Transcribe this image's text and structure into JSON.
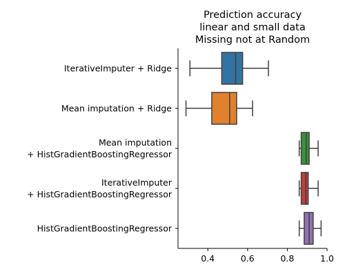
{
  "chart_data": {
    "type": "box",
    "orientation": "horizontal",
    "title": [
      "Prediction accuracy",
      "linear and small data",
      "Missing not at Random"
    ],
    "xlabel": "",
    "ylabel": "",
    "xlim": [
      0.25,
      1.0
    ],
    "xticks": [
      "0.4",
      "0.6",
      "0.8",
      "1.0"
    ],
    "xtick_values": [
      0.4,
      0.6,
      0.8,
      1.0
    ],
    "grid": false,
    "categories": [
      [
        "IterativeImputer + Ridge"
      ],
      [
        "Mean imputation + Ridge"
      ],
      [
        "Mean imputation",
        "+ HistGradientBoostingRegressor"
      ],
      [
        "IterativeImputer",
        "+ HistGradientBoostingRegressor"
      ],
      [
        "HistGradientBoostingRegressor"
      ]
    ],
    "boxes": [
      {
        "color": "#3274a1",
        "whislo": 0.31,
        "q1": 0.47,
        "med": 0.54,
        "q3": 0.575,
        "whishi": 0.705
      },
      {
        "color": "#e1812c",
        "whislo": 0.29,
        "q1": 0.42,
        "med": 0.51,
        "q3": 0.545,
        "whishi": 0.625
      },
      {
        "color": "#3a923a",
        "whislo": 0.86,
        "q1": 0.87,
        "med": 0.895,
        "q3": 0.91,
        "whishi": 0.955
      },
      {
        "color": "#c03d3e",
        "whislo": 0.86,
        "q1": 0.87,
        "med": 0.893,
        "q3": 0.905,
        "whishi": 0.955
      },
      {
        "color": "#9372b2",
        "whislo": 0.86,
        "q1": 0.885,
        "med": 0.91,
        "q3": 0.93,
        "whishi": 0.97
      }
    ]
  }
}
